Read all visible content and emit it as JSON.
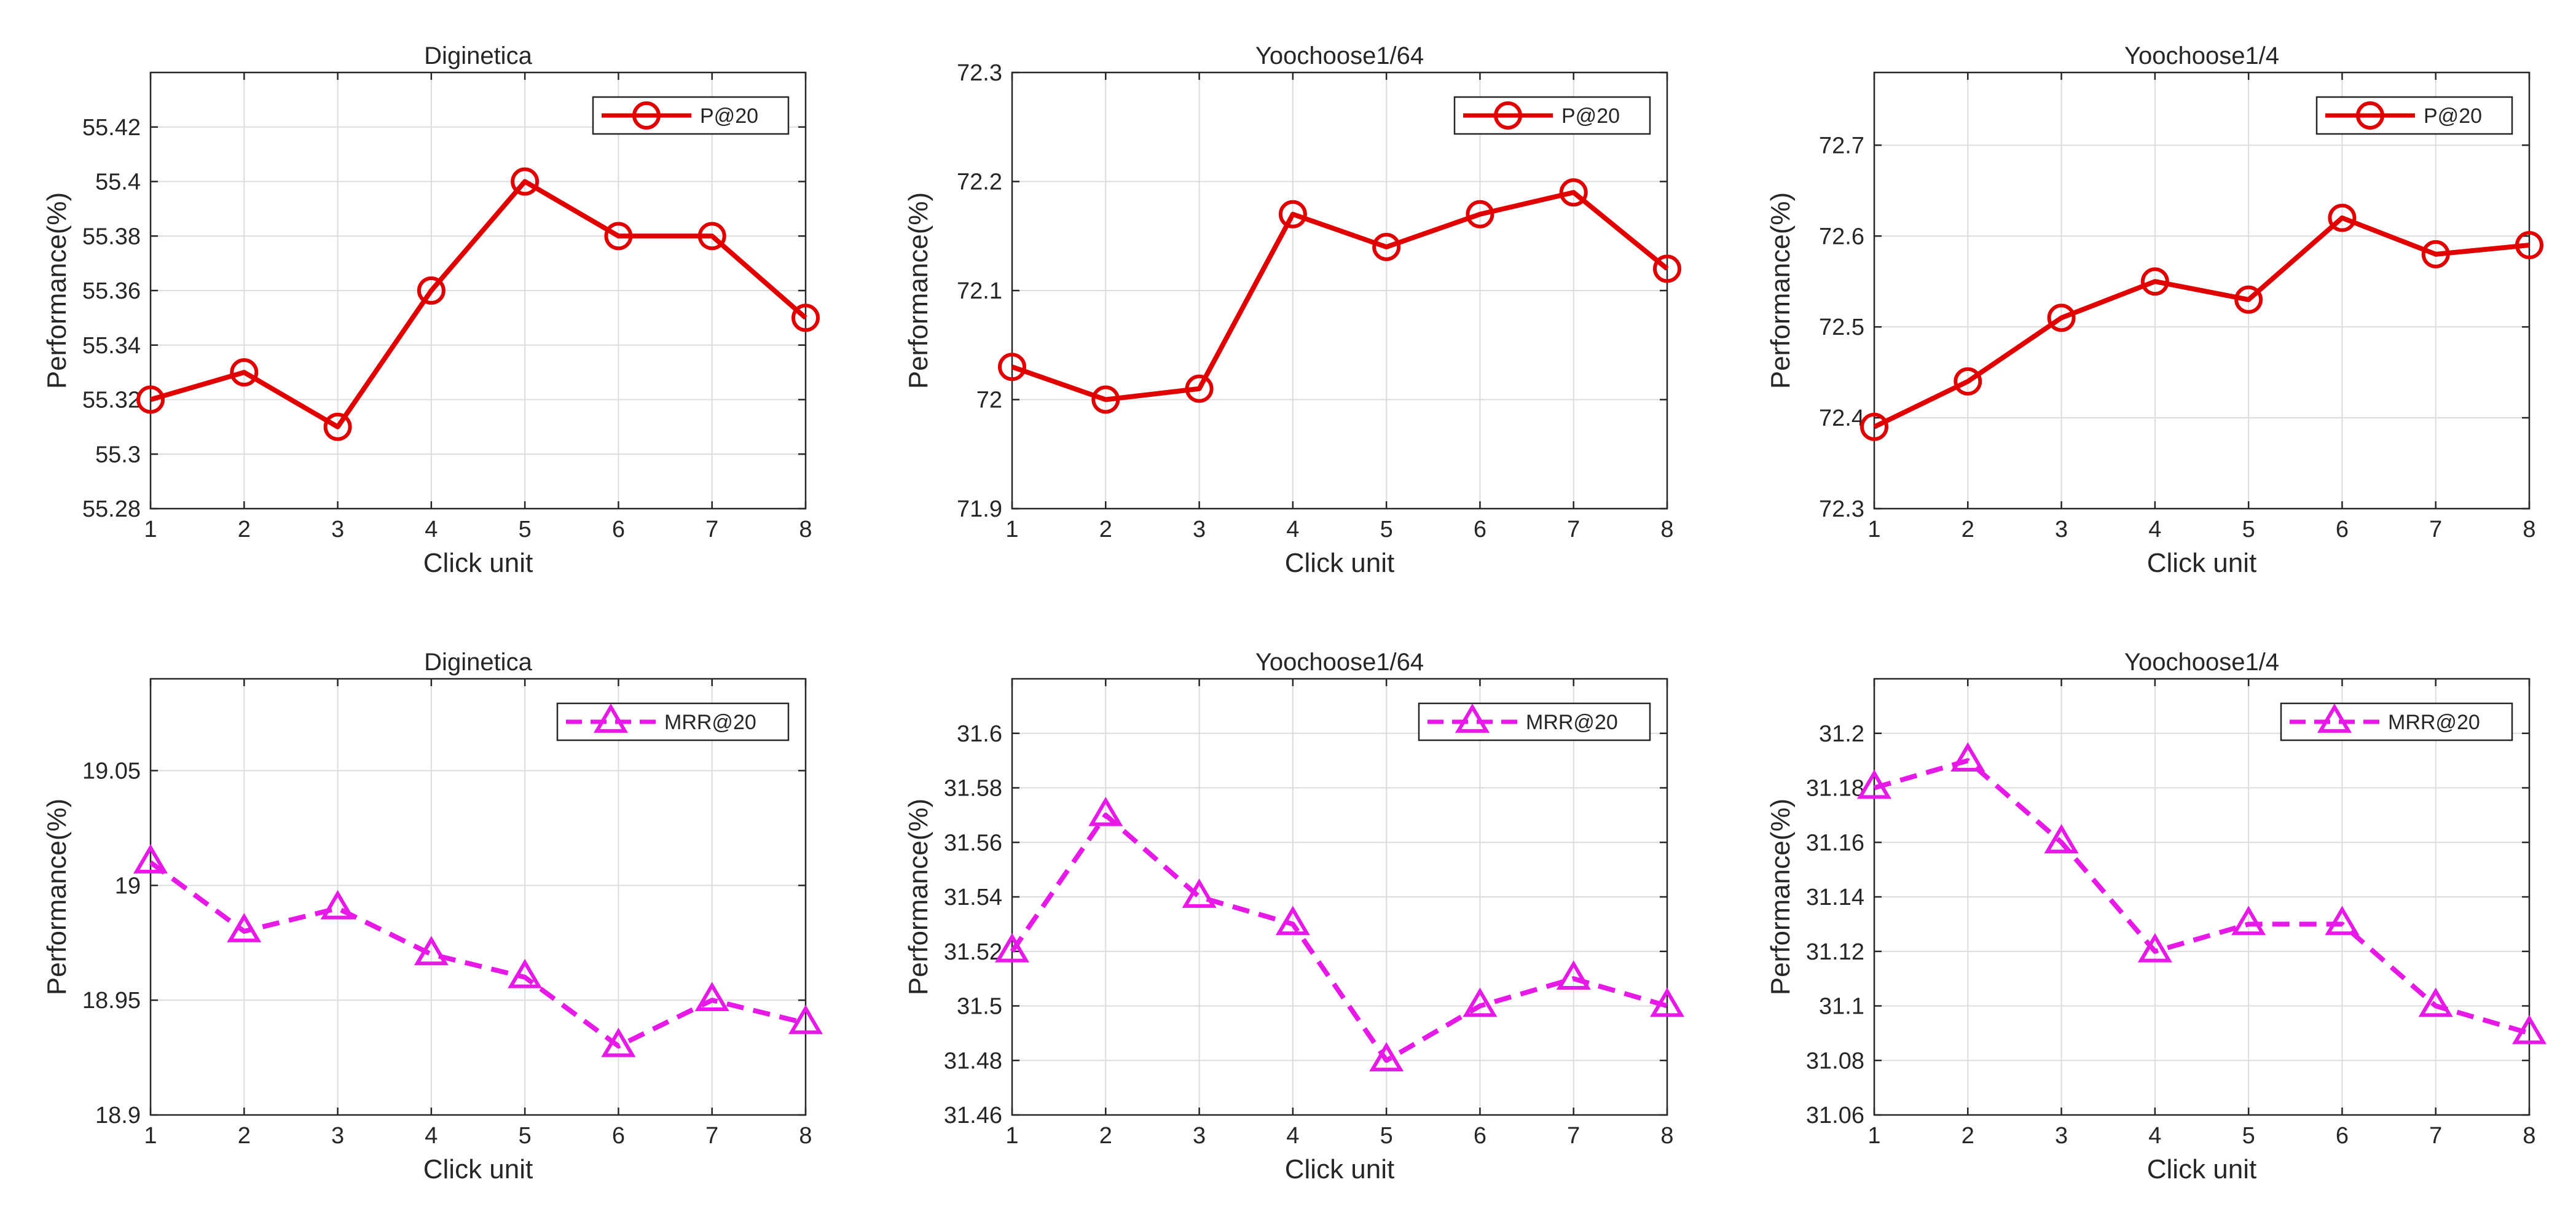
{
  "chart_data": [
    {
      "type": "line",
      "title": "Diginetica",
      "xlabel": "Click unit",
      "ylabel": "Performance(%)",
      "x": [
        1,
        2,
        3,
        4,
        5,
        6,
        7,
        8
      ],
      "xlim": [
        1,
        8
      ],
      "ylim": [
        55.28,
        55.44
      ],
      "xticks": [
        "1",
        "2",
        "3",
        "4",
        "5",
        "6",
        "7",
        "8"
      ],
      "yticks": [
        55.28,
        55.3,
        55.32,
        55.34,
        55.36,
        55.38,
        55.4,
        55.42
      ],
      "ytick_labels": [
        "55.28",
        "55.3",
        "55.32",
        "55.34",
        "55.36",
        "55.38",
        "55.4",
        "55.42"
      ],
      "grid": true,
      "legend_position": "top-right",
      "series": [
        {
          "name": "P@20",
          "marker": "circle",
          "line_style": "solid",
          "color": "#e00000",
          "values": [
            55.32,
            55.33,
            55.31,
            55.36,
            55.4,
            55.38,
            55.38,
            55.35
          ]
        }
      ]
    },
    {
      "type": "line",
      "title": "Yoochoose1/64",
      "xlabel": "Click unit",
      "ylabel": "Performance(%)",
      "x": [
        1,
        2,
        3,
        4,
        5,
        6,
        7,
        8
      ],
      "xlim": [
        1,
        8
      ],
      "ylim": [
        71.9,
        72.3
      ],
      "xticks": [
        "1",
        "2",
        "3",
        "4",
        "5",
        "6",
        "7",
        "8"
      ],
      "yticks": [
        71.9,
        72.0,
        72.1,
        72.2,
        72.3
      ],
      "ytick_labels": [
        "71.9",
        "72",
        "72.1",
        "72.2",
        "72.3"
      ],
      "grid": true,
      "legend_position": "top-right",
      "series": [
        {
          "name": "P@20",
          "marker": "circle",
          "line_style": "solid",
          "color": "#e00000",
          "values": [
            72.03,
            72.0,
            72.01,
            72.17,
            72.14,
            72.17,
            72.19,
            72.12
          ]
        }
      ]
    },
    {
      "type": "line",
      "title": "Yoochoose1/4",
      "xlabel": "Click unit",
      "ylabel": "Performance(%)",
      "x": [
        1,
        2,
        3,
        4,
        5,
        6,
        7,
        8
      ],
      "xlim": [
        1,
        8
      ],
      "ylim": [
        72.3,
        72.78
      ],
      "xticks": [
        "1",
        "2",
        "3",
        "4",
        "5",
        "6",
        "7",
        "8"
      ],
      "yticks": [
        72.3,
        72.4,
        72.5,
        72.6,
        72.7
      ],
      "ytick_labels": [
        "72.3",
        "72.4",
        "72.5",
        "72.6",
        "72.7"
      ],
      "grid": true,
      "legend_position": "top-right",
      "series": [
        {
          "name": "P@20",
          "marker": "circle",
          "line_style": "solid",
          "color": "#e00000",
          "values": [
            72.39,
            72.44,
            72.51,
            72.55,
            72.53,
            72.62,
            72.58,
            72.59
          ]
        }
      ]
    },
    {
      "type": "line",
      "title": "Diginetica",
      "xlabel": "Click unit",
      "ylabel": "Performance(%)",
      "x": [
        1,
        2,
        3,
        4,
        5,
        6,
        7,
        8
      ],
      "xlim": [
        1,
        8
      ],
      "ylim": [
        18.9,
        19.09
      ],
      "xticks": [
        "1",
        "2",
        "3",
        "4",
        "5",
        "6",
        "7",
        "8"
      ],
      "yticks": [
        18.9,
        18.95,
        19.0,
        19.05
      ],
      "ytick_labels": [
        "18.9",
        "18.95",
        "19",
        "19.05"
      ],
      "grid": true,
      "legend_position": "top-right",
      "series": [
        {
          "name": "MRR@20",
          "marker": "triangle",
          "line_style": "dashed",
          "color": "#e619e6",
          "values": [
            19.01,
            18.98,
            18.99,
            18.97,
            18.96,
            18.93,
            18.95,
            18.94
          ]
        }
      ]
    },
    {
      "type": "line",
      "title": "Yoochoose1/64",
      "xlabel": "Click unit",
      "ylabel": "Performance(%)",
      "x": [
        1,
        2,
        3,
        4,
        5,
        6,
        7,
        8
      ],
      "xlim": [
        1,
        8
      ],
      "ylim": [
        31.46,
        31.62
      ],
      "xticks": [
        "1",
        "2",
        "3",
        "4",
        "5",
        "6",
        "7",
        "8"
      ],
      "yticks": [
        31.46,
        31.48,
        31.5,
        31.52,
        31.54,
        31.56,
        31.58,
        31.6
      ],
      "ytick_labels": [
        "31.46",
        "31.48",
        "31.5",
        "31.52",
        "31.54",
        "31.56",
        "31.58",
        "31.6"
      ],
      "grid": true,
      "legend_position": "top-right",
      "series": [
        {
          "name": "MRR@20",
          "marker": "triangle",
          "line_style": "dashed",
          "color": "#e619e6",
          "values": [
            31.52,
            31.57,
            31.54,
            31.53,
            31.48,
            31.5,
            31.51,
            31.5
          ]
        }
      ]
    },
    {
      "type": "line",
      "title": "Yoochoose1/4",
      "xlabel": "Click unit",
      "ylabel": "Performance(%)",
      "x": [
        1,
        2,
        3,
        4,
        5,
        6,
        7,
        8
      ],
      "xlim": [
        1,
        8
      ],
      "ylim": [
        31.06,
        31.22
      ],
      "xticks": [
        "1",
        "2",
        "3",
        "4",
        "5",
        "6",
        "7",
        "8"
      ],
      "yticks": [
        31.06,
        31.08,
        31.1,
        31.12,
        31.14,
        31.16,
        31.18,
        31.2
      ],
      "ytick_labels": [
        "31.06",
        "31.08",
        "31.1",
        "31.12",
        "31.14",
        "31.16",
        "31.18",
        "31.2"
      ],
      "grid": true,
      "legend_position": "top-right",
      "series": [
        {
          "name": "MRR@20",
          "marker": "triangle",
          "line_style": "dashed",
          "color": "#e619e6",
          "values": [
            31.18,
            31.19,
            31.16,
            31.12,
            31.13,
            31.13,
            31.1,
            31.09
          ]
        }
      ]
    }
  ]
}
